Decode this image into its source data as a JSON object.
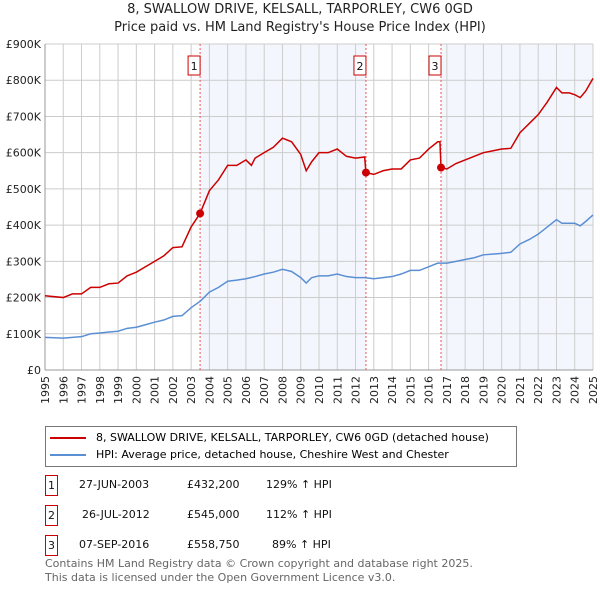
{
  "title": "8, SWALLOW DRIVE, KELSALL, TARPORLEY, CW6 0GD",
  "subtitle": "Price paid vs. HM Land Registry's House Price Index (HPI)",
  "chart_data": {
    "type": "line",
    "title": "8, SWALLOW DRIVE, KELSALL, TARPORLEY, CW6 0GD",
    "xlim": [
      1995,
      2025
    ],
    "ylim": [
      0,
      900000
    ],
    "yticks": [
      0,
      100000,
      200000,
      300000,
      400000,
      500000,
      600000,
      700000,
      800000,
      900000
    ],
    "ytick_labels": [
      "£0",
      "£100K",
      "£200K",
      "£300K",
      "£400K",
      "£500K",
      "£600K",
      "£700K",
      "£800K",
      "£900K"
    ],
    "xtick_labels": [
      "1995",
      "1996",
      "1997",
      "1998",
      "1999",
      "2000",
      "2001",
      "2002",
      "2003",
      "2004",
      "2005",
      "2006",
      "2007",
      "2008",
      "2009",
      "2010",
      "2011",
      "2012",
      "2013",
      "2014",
      "2015",
      "2016",
      "2017",
      "2018",
      "2019",
      "2020",
      "2021",
      "2022",
      "2023",
      "2024",
      "2025"
    ],
    "grid": true,
    "series": [
      {
        "name": "8, SWALLOW DRIVE, KELSALL, TARPORLEY, CW6 0GD (detached house)",
        "color": "#cc0000",
        "points": [
          [
            1995,
            205000
          ],
          [
            1996,
            200000
          ],
          [
            1996.5,
            210000
          ],
          [
            1997,
            210000
          ],
          [
            1997.5,
            228000
          ],
          [
            1998,
            228000
          ],
          [
            1998.5,
            238000
          ],
          [
            1999,
            240000
          ],
          [
            1999.5,
            260000
          ],
          [
            2000,
            270000
          ],
          [
            2000.5,
            285000
          ],
          [
            2001,
            300000
          ],
          [
            2001.5,
            315000
          ],
          [
            2002,
            338000
          ],
          [
            2002.5,
            340000
          ],
          [
            2003,
            395000
          ],
          [
            2003.49,
            432200
          ],
          [
            2004,
            495000
          ],
          [
            2004.5,
            525000
          ],
          [
            2005,
            565000
          ],
          [
            2005.5,
            565000
          ],
          [
            2006,
            580000
          ],
          [
            2006.3,
            565000
          ],
          [
            2006.5,
            585000
          ],
          [
            2007,
            600000
          ],
          [
            2007.5,
            615000
          ],
          [
            2008,
            640000
          ],
          [
            2008.5,
            630000
          ],
          [
            2009,
            595000
          ],
          [
            2009.3,
            550000
          ],
          [
            2009.6,
            575000
          ],
          [
            2010,
            600000
          ],
          [
            2010.5,
            600000
          ],
          [
            2011,
            610000
          ],
          [
            2011.5,
            590000
          ],
          [
            2012,
            585000
          ],
          [
            2012.5,
            588000
          ],
          [
            2012.57,
            545000
          ],
          [
            2013,
            540000
          ],
          [
            2013.5,
            550000
          ],
          [
            2014,
            555000
          ],
          [
            2014.5,
            555000
          ],
          [
            2015,
            580000
          ],
          [
            2015.5,
            585000
          ],
          [
            2016,
            610000
          ],
          [
            2016.5,
            630000
          ],
          [
            2016.62,
            630000
          ],
          [
            2016.68,
            558750
          ],
          [
            2017,
            555000
          ],
          [
            2017.5,
            570000
          ],
          [
            2018,
            580000
          ],
          [
            2018.5,
            590000
          ],
          [
            2019,
            600000
          ],
          [
            2019.5,
            605000
          ],
          [
            2020,
            610000
          ],
          [
            2020.5,
            612000
          ],
          [
            2021,
            655000
          ],
          [
            2021.5,
            680000
          ],
          [
            2022,
            705000
          ],
          [
            2022.5,
            740000
          ],
          [
            2023,
            780000
          ],
          [
            2023.3,
            765000
          ],
          [
            2023.7,
            765000
          ],
          [
            2024,
            760000
          ],
          [
            2024.3,
            752000
          ],
          [
            2024.6,
            770000
          ],
          [
            2025,
            805000
          ]
        ]
      },
      {
        "name": "HPI: Average price, detached house, Cheshire West and Chester",
        "color": "#5b8fd4",
        "points": [
          [
            1995,
            90000
          ],
          [
            1996,
            88000
          ],
          [
            1996.5,
            90000
          ],
          [
            1997,
            92000
          ],
          [
            1997.5,
            100000
          ],
          [
            1998,
            102000
          ],
          [
            1998.5,
            105000
          ],
          [
            1999,
            107000
          ],
          [
            1999.5,
            115000
          ],
          [
            2000,
            118000
          ],
          [
            2000.5,
            125000
          ],
          [
            2001,
            132000
          ],
          [
            2001.5,
            138000
          ],
          [
            2002,
            148000
          ],
          [
            2002.5,
            150000
          ],
          [
            2003,
            172000
          ],
          [
            2003.5,
            190000
          ],
          [
            2004,
            215000
          ],
          [
            2004.5,
            228000
          ],
          [
            2005,
            245000
          ],
          [
            2005.5,
            248000
          ],
          [
            2006,
            252000
          ],
          [
            2006.5,
            258000
          ],
          [
            2007,
            265000
          ],
          [
            2007.5,
            270000
          ],
          [
            2008,
            278000
          ],
          [
            2008.5,
            272000
          ],
          [
            2009,
            255000
          ],
          [
            2009.3,
            240000
          ],
          [
            2009.6,
            255000
          ],
          [
            2010,
            260000
          ],
          [
            2010.5,
            260000
          ],
          [
            2011,
            265000
          ],
          [
            2011.5,
            258000
          ],
          [
            2012,
            255000
          ],
          [
            2012.5,
            255000
          ],
          [
            2013,
            252000
          ],
          [
            2013.5,
            255000
          ],
          [
            2014,
            258000
          ],
          [
            2014.5,
            265000
          ],
          [
            2015,
            275000
          ],
          [
            2015.5,
            275000
          ],
          [
            2016,
            285000
          ],
          [
            2016.5,
            295000
          ],
          [
            2017,
            295000
          ],
          [
            2017.5,
            300000
          ],
          [
            2018,
            305000
          ],
          [
            2018.5,
            310000
          ],
          [
            2019,
            318000
          ],
          [
            2019.5,
            320000
          ],
          [
            2020,
            322000
          ],
          [
            2020.5,
            325000
          ],
          [
            2021,
            348000
          ],
          [
            2021.5,
            360000
          ],
          [
            2022,
            375000
          ],
          [
            2022.5,
            395000
          ],
          [
            2023,
            415000
          ],
          [
            2023.3,
            405000
          ],
          [
            2023.7,
            405000
          ],
          [
            2024,
            405000
          ],
          [
            2024.3,
            398000
          ],
          [
            2024.6,
            410000
          ],
          [
            2025,
            428000
          ]
        ]
      }
    ],
    "sales": [
      {
        "label": "1",
        "x": 2003.49,
        "y": 432200
      },
      {
        "label": "2",
        "x": 2012.57,
        "y": 545000
      },
      {
        "label": "3",
        "x": 2016.68,
        "y": 558750
      }
    ],
    "legend_position": "bottom"
  },
  "legend": [
    {
      "label": "8, SWALLOW DRIVE, KELSALL, TARPORLEY, CW6 0GD (detached house)",
      "color": "#cc0000"
    },
    {
      "label": "HPI: Average price, detached house, Cheshire West and Chester",
      "color": "#5b8fd4"
    }
  ],
  "sales_table": [
    {
      "num": "1",
      "date": "27-JUN-2003",
      "price": "£432,200",
      "hpi": "129% ↑ HPI"
    },
    {
      "num": "2",
      "date": "26-JUL-2012",
      "price": "£545,000",
      "hpi": "112% ↑ HPI"
    },
    {
      "num": "3",
      "date": "07-SEP-2016",
      "price": "£558,750",
      "hpi": "89% ↑ HPI"
    }
  ],
  "footer": [
    "Contains HM Land Registry data © Crown copyright and database right 2025.",
    "This data is licensed under the Open Government Licence v3.0."
  ]
}
